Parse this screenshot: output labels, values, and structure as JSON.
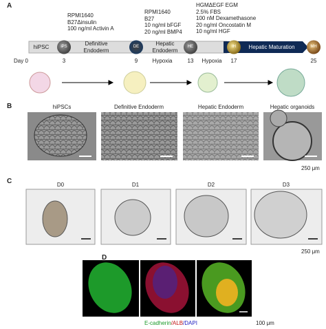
{
  "panel_a": {
    "label": "A",
    "media": [
      [
        "RPMI1640",
        "B27Δinsulin",
        "100 ng/ml Activin A"
      ],
      [
        "RPMI1640",
        "B27",
        "10 ng/ml bFGF",
        "20 ng/ml BMP4"
      ],
      [
        "HGMΔEGF EGM",
        "2.5% FBS",
        "100 nM Dexamethasone",
        "20 ng/ml Oncostatin M",
        "10 ng/ml HGF"
      ]
    ],
    "start": "hiPSC",
    "stage1": [
      "Definitive",
      "Endoderm"
    ],
    "stage2": [
      "Hepatic",
      "Endoderm"
    ],
    "stage3": "Hepatic Maturation",
    "nodes": [
      "iPS",
      "DE",
      "HE",
      "IH",
      "MH"
    ],
    "days": [
      "Day 0",
      "3",
      "9",
      "13",
      "17",
      "25"
    ],
    "hypoxia": [
      "Hypoxia",
      "Hypoxia"
    ]
  },
  "panel_b": {
    "label": "B",
    "titles": [
      "hiPSCs",
      "Definitive  Endoderm",
      "Hepatic Endoderm",
      "Hepatic organoids"
    ],
    "scale": "250 μm"
  },
  "panel_c": {
    "label": "C",
    "titles": [
      "D0",
      "D1",
      "D2",
      "D3"
    ],
    "scale": "250 μm"
  },
  "panel_d": {
    "label": "D",
    "caption": [
      "E-cadherin",
      "/ALB",
      "/DAPI"
    ],
    "scale": "100 μm"
  }
}
